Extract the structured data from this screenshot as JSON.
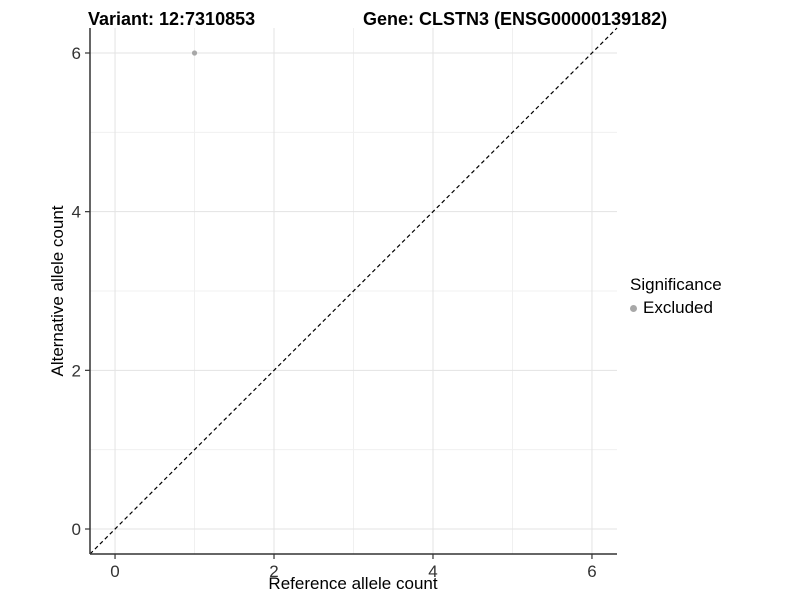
{
  "title": {
    "left": "Variant: 12:7310853",
    "right": "Gene: CLSTN3 (ENSG00000139182)"
  },
  "chart_data": {
    "type": "scatter",
    "xlabel": "Reference allele count",
    "ylabel": "Alternative allele count",
    "xlim": [
      -0.315,
      6.315
    ],
    "ylim": [
      -0.315,
      6.315
    ],
    "xticks": [
      0,
      2,
      4,
      6
    ],
    "yticks": [
      0,
      2,
      4,
      6
    ],
    "xminor": [
      1,
      3,
      5
    ],
    "yminor": [
      1,
      3,
      5
    ],
    "grid": true,
    "points": [
      {
        "x": 1,
        "y": 6,
        "series": "Excluded"
      }
    ],
    "reference_line": {
      "slope": 1,
      "intercept": 0,
      "style": "dashed",
      "color": "#000000"
    },
    "legend": {
      "title": "Significance",
      "position": "right",
      "entries": [
        {
          "label": "Excluded",
          "color": "#a8a8a8",
          "marker": "circle"
        }
      ]
    },
    "colors": {
      "point": "#a8a8a8",
      "grid_major": "#e3e3e3",
      "grid_minor": "#f0f0f0",
      "axis_line": "#333333",
      "tick_text": "#333333",
      "background": "#ffffff"
    }
  }
}
